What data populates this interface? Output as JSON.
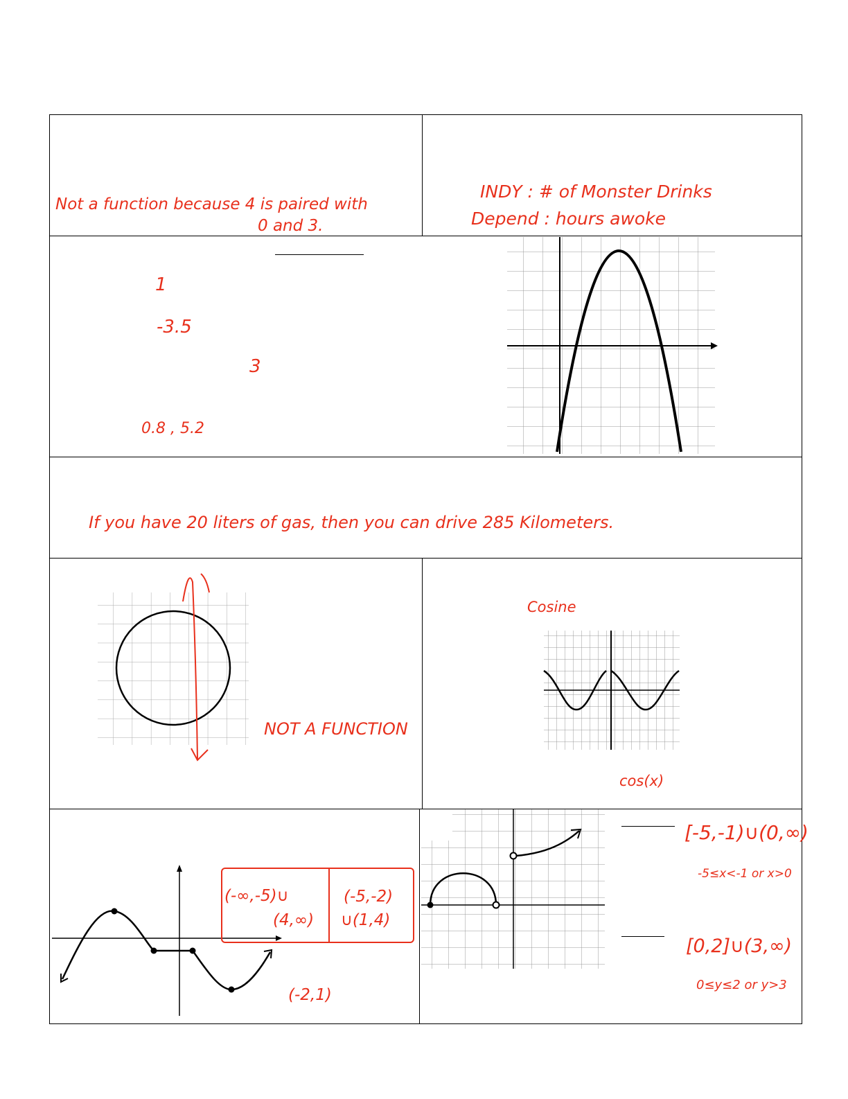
{
  "annotations": {
    "not_function_line1": "Not a function because  4 is paired with",
    "not_function_line2": "0 and 3.",
    "independent": "INDY : # of Monster Drinks",
    "dependent": "Depend : hours  awoke",
    "answer_1": "1",
    "answer_neg_3_5": "-3.5",
    "answer_3": "3",
    "answer_zeros": "0.8 , 5.2",
    "gas_statement": "If  you have 20 liters of gas, then you can drive 285 Kilometers.",
    "not_a_function": "NOT A FUNCTION",
    "cosine_label": "Cosine",
    "cos_x": "cos(x)",
    "increasing": "(-∞,-5)∪",
    "increasing_2": "(4,∞)",
    "decreasing": "(-5,-2)",
    "decreasing_2": "∪(1,4)",
    "constant": "(-2,1)",
    "domain_interval": "[-5,-1)∪(0,∞)",
    "domain_inequality": "-5≤x<-1 or x>0",
    "range_interval": "[0,2]∪(3,∞)",
    "range_inequality": "0≤y≤2 or y>3"
  },
  "colors": {
    "ink": "#e8301c",
    "lines": "#000000",
    "grid": "#999999"
  }
}
